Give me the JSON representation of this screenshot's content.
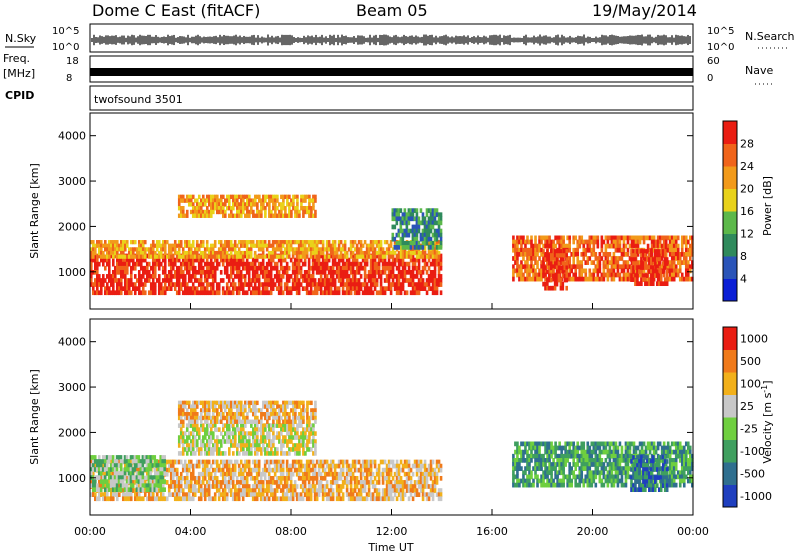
{
  "header": {
    "radar": "Dome C East (fitACF)",
    "beam": "Beam 05",
    "date": "19/May/2014"
  },
  "params_panel": {
    "nsky_label": "N.Sky",
    "nsearch_label": "N.Search",
    "freq_label_line1": "Freq.",
    "freq_label_line2": "[MHz]",
    "nave_label": "Nave",
    "cpid_label": "CPID",
    "noise_left_ticks": [
      "10^5",
      "10^0"
    ],
    "noise_right_ticks": [
      "10^5",
      "10^0"
    ],
    "freq_ticks": [
      "18",
      "8"
    ],
    "nave_ticks": [
      "60",
      "0"
    ],
    "cpid_value": "twofsound 3501"
  },
  "chart_data": [
    {
      "type": "heatmap",
      "name": "power",
      "ylabel": "Slant Range [km]",
      "yticks": [
        1000,
        2000,
        3000,
        4000
      ],
      "ylim": [
        180,
        4500
      ],
      "xlim_hours": [
        0,
        24
      ],
      "colorbar_label": "Power [dB]",
      "colorbar_ticks": [
        "4",
        "8",
        "12",
        "16",
        "20",
        "24",
        "28"
      ],
      "colors": [
        "#0a1fd6",
        "#2a54b8",
        "#2f8a5c",
        "#5cb84a",
        "#e9d21a",
        "#f29a1a",
        "#f0641a",
        "#ea1d12"
      ],
      "regions": [
        {
          "t": [
            0.0,
            14.0
          ],
          "r": [
            500,
            1400
          ],
          "level": 7
        },
        {
          "t": [
            0.0,
            14.0
          ],
          "r": [
            1300,
            1700
          ],
          "level": 5
        },
        {
          "t": [
            3.5,
            9.0
          ],
          "r": [
            2200,
            2700
          ],
          "level": 5
        },
        {
          "t": [
            12.0,
            14.0
          ],
          "r": [
            1500,
            2400
          ],
          "level": 2
        },
        {
          "t": [
            16.8,
            24.0
          ],
          "r": [
            800,
            1800
          ],
          "level": 6
        },
        {
          "t": [
            18.0,
            19.0
          ],
          "r": [
            600,
            1500
          ],
          "level": 7
        },
        {
          "t": [
            21.5,
            23.0
          ],
          "r": [
            700,
            1500
          ],
          "level": 7
        }
      ]
    },
    {
      "type": "heatmap",
      "name": "velocity",
      "ylabel": "Slant Range [km]",
      "yticks": [
        1000,
        2000,
        3000,
        4000
      ],
      "ylim": [
        180,
        4500
      ],
      "xlim_hours": [
        0,
        24
      ],
      "xticks": [
        "00:00",
        "04:00",
        "08:00",
        "12:00",
        "16:00",
        "20:00",
        "00:00"
      ],
      "xlabel": "Time UT",
      "colorbar_label_main": "Velocity  [m s",
      "colorbar_label_sup": "-1",
      "colorbar_label_end": "]",
      "colorbar_ticks": [
        "1000",
        "500",
        "100",
        "25",
        "-25",
        "-100",
        "-500",
        "-1000"
      ],
      "colors": [
        "#1f3fbf",
        "#2f6f8f",
        "#3f9f5f",
        "#6fcf3f",
        "#c8c8c8",
        "#f2b01a",
        "#f07a1a",
        "#ea1d12"
      ],
      "regions": [
        {
          "t": [
            0.0,
            14.0
          ],
          "r": [
            500,
            1400
          ],
          "level": 5
        },
        {
          "t": [
            0.0,
            3.0
          ],
          "r": [
            700,
            1500
          ],
          "level": 3
        },
        {
          "t": [
            3.5,
            9.0
          ],
          "r": [
            1500,
            2200
          ],
          "level": 4
        },
        {
          "t": [
            3.5,
            9.0
          ],
          "r": [
            2200,
            2700
          ],
          "level": 5
        },
        {
          "t": [
            16.8,
            24.0
          ],
          "r": [
            800,
            1800
          ],
          "level": 2
        },
        {
          "t": [
            21.5,
            23.0
          ],
          "r": [
            700,
            1500
          ],
          "level": 1
        }
      ]
    }
  ]
}
